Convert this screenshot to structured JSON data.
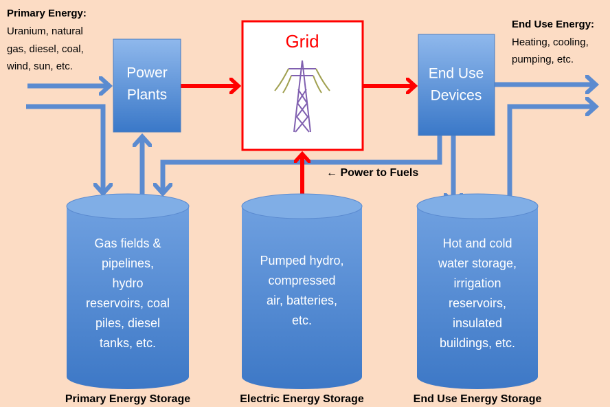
{
  "primary_energy": {
    "title": "Primary Energy:",
    "lines": [
      "Uranium, natural",
      "gas, diesel, coal,",
      "wind, sun, etc."
    ]
  },
  "end_use_energy": {
    "title": "End Use Energy:",
    "lines": [
      "Heating, cooling,",
      "pumping, etc."
    ]
  },
  "nodes": [
    {
      "label": [
        "Power",
        "Plants"
      ]
    },
    {
      "label": [
        "Grid"
      ]
    },
    {
      "label": [
        "End Use",
        "Devices"
      ]
    }
  ],
  "power_to_fuels": "← Power to Fuels",
  "storages": [
    {
      "lines": [
        "Gas fields &",
        "pipelines,",
        "hydro",
        "reservoirs, coal",
        "piles, diesel",
        "tanks, etc."
      ],
      "caption": "Primary Energy Storage"
    },
    {
      "lines": [
        "Pumped hydro,",
        "compressed",
        "air, batteries,",
        "etc."
      ],
      "caption": "Electric Energy Storage"
    },
    {
      "lines": [
        "Hot and cold",
        "water storage,",
        "irrigation",
        "reservoirs,",
        "insulated",
        "buildings, etc."
      ],
      "caption": "End Use Energy Storage"
    }
  ]
}
